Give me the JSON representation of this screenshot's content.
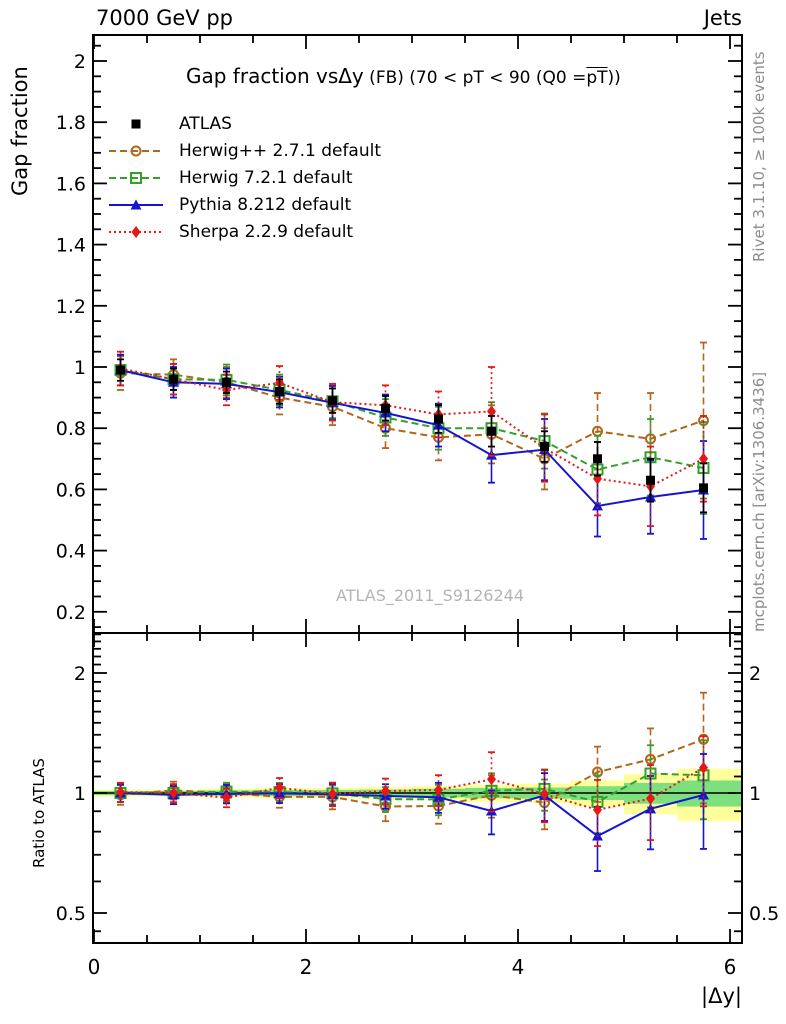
{
  "header": {
    "left": "7000 GeV pp",
    "right": "Jets"
  },
  "title": {
    "main": "Gap fraction vs",
    "delta": "Δy",
    "suffix_pre": " (FB) (70 < pT <  90 (Q0 =",
    "overlined": "pT",
    "suffix_post": "))"
  },
  "watermark": "ATLAS_2011_S9126244",
  "side_texts": {
    "top_right": "Rivet 3.1.10, ≥ 100k events",
    "bottom_right": "mcplots.cern.ch [arXiv:1306.3436]"
  },
  "chart_data": {
    "type": "line",
    "title": "Gap fraction vs Δy (FB) (70 < pT < 90 (Q0 = pT))",
    "xlabel": "|Δy|",
    "axes": {
      "x": {
        "label": "|Δy|",
        "min": -0.01,
        "max": 6.11,
        "major_ticks": [
          0,
          2,
          4,
          6
        ],
        "major_tick_labels": [
          "0",
          "2",
          "4",
          "6"
        ],
        "minor_step": 0.5
      },
      "y_top": {
        "label": "Gap fraction",
        "scale": "linear",
        "min": 0.131,
        "max": 2.085,
        "major_ticks": [
          0.2,
          0.4,
          0.6,
          0.8,
          1,
          1.2,
          1.4,
          1.6,
          1.8,
          2
        ],
        "major_tick_labels": [
          "0.2",
          "0.4",
          "0.6",
          "0.8",
          "1",
          "1.2",
          "1.4",
          "1.6",
          "1.8",
          "2"
        ],
        "minor_step": 0.05
      },
      "y_ratio": {
        "label": "Ratio to ATLAS",
        "scale": "log",
        "min": 0.42,
        "max": 2.52,
        "major_ticks": [
          0.5,
          1,
          2
        ],
        "major_tick_labels": [
          "0.5",
          "1",
          "2"
        ],
        "minor_ticks": [
          0.45,
          0.6,
          0.7,
          0.8,
          0.9,
          1.1,
          1.2,
          1.3,
          1.4,
          1.5,
          1.6,
          1.7,
          1.8,
          1.9,
          2.1,
          2.2,
          2.3,
          2.4,
          2.5
        ]
      }
    },
    "x": [
      0.25,
      0.75,
      1.25,
      1.75,
      2.25,
      2.75,
      3.25,
      3.75,
      4.25,
      4.75,
      5.25,
      5.75
    ],
    "bin_half_width": 0.25,
    "series": [
      {
        "name": "ATLAS",
        "color": "#000000",
        "marker": "square-filled",
        "line": "none",
        "values": [
          0.99,
          0.96,
          0.95,
          0.92,
          0.89,
          0.865,
          0.83,
          0.79,
          0.74,
          0.7,
          0.63,
          0.605
        ],
        "err": [
          0.035,
          0.035,
          0.035,
          0.04,
          0.04,
          0.04,
          0.045,
          0.05,
          0.05,
          0.055,
          0.07,
          0.08
        ]
      },
      {
        "name": "Herwig++ 2.7.1 default",
        "color": "#b2661a",
        "marker": "circle-open",
        "line": "dashed",
        "values": [
          0.98,
          0.975,
          0.95,
          0.9,
          0.87,
          0.8,
          0.77,
          0.78,
          0.7,
          0.79,
          0.765,
          0.825
        ],
        "err": [
          0.055,
          0.05,
          0.05,
          0.055,
          0.06,
          0.065,
          0.075,
          0.095,
          0.1,
          0.125,
          0.15,
          0.255
        ]
      },
      {
        "name": "Herwig 7.2.1 default",
        "color": "#33a02c",
        "marker": "square-open",
        "line": "dashed",
        "values": [
          0.99,
          0.96,
          0.958,
          0.925,
          0.888,
          0.835,
          0.8,
          0.8,
          0.758,
          0.665,
          0.705,
          0.67
        ],
        "err": [
          0.05,
          0.05,
          0.05,
          0.05,
          0.055,
          0.06,
          0.07,
          0.085,
          0.09,
          0.11,
          0.125,
          0.15
        ]
      },
      {
        "name": "Pythia 8.212 default",
        "color": "#1515d0",
        "marker": "triangle-filled",
        "line": "solid",
        "values": [
          0.99,
          0.95,
          0.945,
          0.918,
          0.883,
          0.85,
          0.81,
          0.712,
          0.73,
          0.546,
          0.575,
          0.598
        ],
        "err": [
          0.05,
          0.05,
          0.05,
          0.05,
          0.055,
          0.06,
          0.07,
          0.09,
          0.1,
          0.1,
          0.12,
          0.16
        ]
      },
      {
        "name": "Sherpa 2.2.9 default",
        "color": "#e61717",
        "marker": "diamond-filled",
        "line": "dotted",
        "values": [
          0.995,
          0.96,
          0.925,
          0.948,
          0.885,
          0.875,
          0.845,
          0.855,
          0.735,
          0.635,
          0.61,
          0.7
        ],
        "err": [
          0.055,
          0.05,
          0.05,
          0.055,
          0.06,
          0.065,
          0.075,
          0.145,
          0.11,
          0.12,
          0.13,
          0.14
        ]
      }
    ],
    "ratio_reference_series": "ATLAS",
    "ratio_bands": {
      "yellow_rel": [
        0.02,
        0.02,
        0.025,
        0.03,
        0.03,
        0.035,
        0.04,
        0.05,
        0.055,
        0.075,
        0.115,
        0.15
      ],
      "green_rel": [
        0.012,
        0.012,
        0.015,
        0.018,
        0.018,
        0.02,
        0.025,
        0.03,
        0.032,
        0.04,
        0.06,
        0.075
      ],
      "yellow_color": "#ffff9c",
      "green_color": "#7ddf7d"
    },
    "legend_position": "top-left-inside",
    "grid": false
  }
}
